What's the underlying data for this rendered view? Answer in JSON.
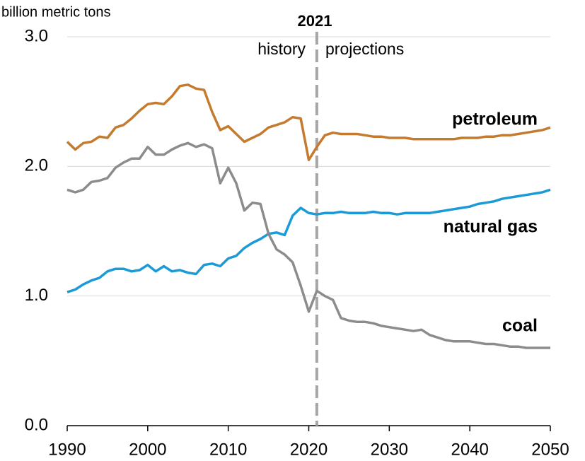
{
  "chart_data": {
    "type": "line",
    "y_label": "billion metric tons",
    "divider": {
      "value": 2021,
      "label": "2021"
    },
    "annotations": [
      "history",
      "projections"
    ],
    "x": [
      1990,
      1991,
      1992,
      1993,
      1994,
      1995,
      1996,
      1997,
      1998,
      1999,
      2000,
      2001,
      2002,
      2003,
      2004,
      2005,
      2006,
      2007,
      2008,
      2009,
      2010,
      2011,
      2012,
      2013,
      2014,
      2015,
      2016,
      2017,
      2018,
      2019,
      2020,
      2021,
      2022,
      2023,
      2024,
      2025,
      2026,
      2027,
      2028,
      2029,
      2030,
      2031,
      2032,
      2033,
      2034,
      2035,
      2036,
      2037,
      2038,
      2039,
      2040,
      2041,
      2042,
      2043,
      2044,
      2045,
      2046,
      2047,
      2048,
      2049,
      2050
    ],
    "series": [
      {
        "name": "petroleum",
        "color": "#c47b2f",
        "values": [
          2.19,
          2.13,
          2.18,
          2.19,
          2.23,
          2.22,
          2.3,
          2.32,
          2.37,
          2.43,
          2.48,
          2.49,
          2.48,
          2.54,
          2.62,
          2.63,
          2.6,
          2.59,
          2.42,
          2.28,
          2.31,
          2.25,
          2.19,
          2.22,
          2.25,
          2.3,
          2.32,
          2.34,
          2.38,
          2.37,
          2.05,
          2.15,
          2.24,
          2.26,
          2.25,
          2.25,
          2.25,
          2.24,
          2.23,
          2.23,
          2.22,
          2.22,
          2.22,
          2.21,
          2.21,
          2.21,
          2.21,
          2.21,
          2.21,
          2.22,
          2.22,
          2.22,
          2.23,
          2.23,
          2.24,
          2.24,
          2.25,
          2.26,
          2.27,
          2.28,
          2.3
        ]
      },
      {
        "name": "natural gas",
        "color": "#1a9ad6",
        "values": [
          1.03,
          1.05,
          1.09,
          1.12,
          1.14,
          1.19,
          1.21,
          1.21,
          1.19,
          1.2,
          1.24,
          1.19,
          1.23,
          1.19,
          1.2,
          1.18,
          1.17,
          1.24,
          1.25,
          1.23,
          1.29,
          1.31,
          1.37,
          1.41,
          1.44,
          1.48,
          1.49,
          1.47,
          1.62,
          1.68,
          1.64,
          1.63,
          1.64,
          1.64,
          1.65,
          1.64,
          1.64,
          1.64,
          1.65,
          1.64,
          1.64,
          1.63,
          1.64,
          1.64,
          1.64,
          1.64,
          1.65,
          1.66,
          1.67,
          1.68,
          1.69,
          1.71,
          1.72,
          1.73,
          1.75,
          1.76,
          1.77,
          1.78,
          1.79,
          1.8,
          1.82
        ]
      },
      {
        "name": "coal",
        "color": "#8c8c8c",
        "values": [
          1.82,
          1.8,
          1.82,
          1.88,
          1.89,
          1.91,
          1.99,
          2.03,
          2.06,
          2.06,
          2.15,
          2.09,
          2.09,
          2.13,
          2.16,
          2.18,
          2.15,
          2.17,
          2.14,
          1.87,
          1.99,
          1.87,
          1.66,
          1.72,
          1.71,
          1.48,
          1.36,
          1.32,
          1.26,
          1.08,
          0.88,
          1.04,
          1.0,
          0.97,
          0.83,
          0.81,
          0.8,
          0.8,
          0.79,
          0.77,
          0.76,
          0.75,
          0.74,
          0.73,
          0.74,
          0.7,
          0.68,
          0.66,
          0.65,
          0.65,
          0.65,
          0.64,
          0.63,
          0.63,
          0.62,
          0.61,
          0.61,
          0.6,
          0.6,
          0.6,
          0.6
        ]
      }
    ],
    "xlim": [
      1990,
      2050
    ],
    "xticks": [
      1990,
      2000,
      2010,
      2020,
      2030,
      2040,
      2050
    ],
    "ylim": [
      0,
      3
    ],
    "yticks": [
      {
        "value": 0,
        "label": "0.0"
      },
      {
        "value": 1,
        "label": "1.0"
      },
      {
        "value": 2,
        "label": "2.0"
      },
      {
        "value": 3,
        "label": "3.0"
      }
    ],
    "grid": true
  }
}
